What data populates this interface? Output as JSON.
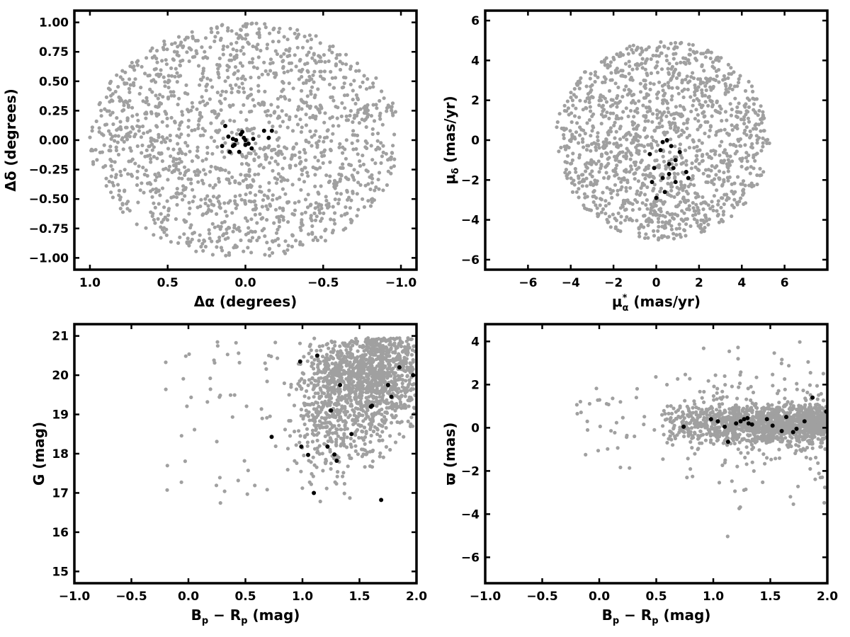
{
  "colors": {
    "field": "#a0a0a0",
    "members": "#000000",
    "frame": "#000000",
    "background": "#ffffff"
  },
  "chart_data": [
    {
      "type": "scatter",
      "xlabel": "Δα (degrees)",
      "ylabel": "Δδ (degrees)",
      "xlim": [
        1.1,
        -1.1
      ],
      "ylim": [
        -1.1,
        1.1
      ],
      "x_inverted": true,
      "xticks": [
        1.0,
        0.5,
        0.0,
        -0.5,
        -1.0
      ],
      "xtick_labels": [
        "1.0",
        "0.5",
        "0.0",
        "−0.5",
        "−1.0"
      ],
      "yticks": [
        -1.0,
        -0.75,
        -0.5,
        -0.25,
        0.0,
        0.25,
        0.5,
        0.75,
        1.0
      ],
      "ytick_labels": [
        "−1.00",
        "−0.75",
        "−0.50",
        "−0.25",
        "0.00",
        "0.25",
        "0.50",
        "0.75",
        "1.00"
      ],
      "grid": false,
      "field_distribution": {
        "shape": "disk",
        "center": [
          0.0,
          0.0
        ],
        "radius": 1.0,
        "count": 1600
      },
      "members": {
        "x": [
          0.15,
          0.07,
          0.0,
          -0.05,
          -0.12,
          -0.17,
          0.08,
          0.03,
          0.02,
          -0.02,
          0.06,
          0.04,
          0.1,
          -0.04,
          0.08,
          0.13,
          0.0,
          -0.15,
          0.11,
          0.01
        ],
        "y": [
          -0.05,
          -0.04,
          0.0,
          0.01,
          0.08,
          0.08,
          0.01,
          0.05,
          0.07,
          -0.03,
          0.0,
          -0.1,
          -0.1,
          -0.07,
          -0.05,
          0.12,
          -0.04,
          0.02,
          0.03,
          0.02
        ]
      }
    },
    {
      "type": "scatter",
      "xlabel": "μ*α  (mas/yr)",
      "ylabel": "μδ (mas/yr)",
      "xlim": [
        -8,
        8
      ],
      "ylim": [
        -6.5,
        6.5
      ],
      "xticks": [
        -6,
        -4,
        -2,
        0,
        2,
        4,
        6
      ],
      "xtick_labels": [
        "−6",
        "−4",
        "−2",
        "0",
        "2",
        "4",
        "6"
      ],
      "yticks": [
        -6,
        -4,
        -2,
        0,
        2,
        4,
        6
      ],
      "ytick_labels": [
        "−6",
        "−4",
        "−2",
        "0",
        "2",
        "4",
        "6"
      ],
      "grid": false,
      "field_distribution": {
        "shape": "disk",
        "center": [
          0.3,
          0.0
        ],
        "radius": 5.0,
        "ylimit": [
          -5.0,
          5.0
        ],
        "count": 1400
      },
      "members": {
        "x": [
          -0.3,
          0.5,
          0.2,
          1.1,
          0.6,
          0.9,
          0.3,
          -0.2,
          1.4,
          0.7,
          0.0,
          0.8,
          0.4,
          1.5,
          0.6,
          -0.1,
          0.3,
          0.9
        ],
        "y": [
          -0.7,
          0.0,
          -0.5,
          -0.6,
          -1.2,
          -1.0,
          -1.9,
          -2.1,
          -1.6,
          -0.3,
          -2.9,
          -1.4,
          -2.6,
          -1.9,
          -1.7,
          -1.4,
          -0.1,
          -2.1
        ]
      }
    },
    {
      "type": "scatter",
      "xlabel": "Bp − Rp (mag)",
      "ylabel": "G (mag)",
      "xlim": [
        -1.0,
        2.0
      ],
      "ylim": [
        14.7,
        21.3
      ],
      "xticks": [
        -1.0,
        -0.5,
        0.0,
        0.5,
        1.0,
        1.5,
        2.0
      ],
      "xtick_labels": [
        "−1.0",
        "−0.5",
        "0.0",
        "0.5",
        "1.0",
        "1.5",
        "2.0"
      ],
      "yticks": [
        15,
        16,
        17,
        18,
        19,
        20,
        21
      ],
      "ytick_labels": [
        "15",
        "16",
        "17",
        "18",
        "19",
        "20",
        "21"
      ],
      "grid": false,
      "field_distribution": {
        "shape": "cmd-band",
        "count": 1500
      },
      "members": {
        "x": [
          0.98,
          1.13,
          1.25,
          1.33,
          1.6,
          1.75,
          1.85,
          1.97,
          0.73,
          0.99,
          1.05,
          1.22,
          1.28,
          1.3,
          1.1,
          1.69,
          1.43,
          1.61,
          1.78
        ],
        "y": [
          20.35,
          20.5,
          19.1,
          19.75,
          19.2,
          19.75,
          20.2,
          20.0,
          18.43,
          18.18,
          17.97,
          18.18,
          17.98,
          17.82,
          17.0,
          16.82,
          18.5,
          19.22,
          19.45
        ]
      }
    },
    {
      "type": "scatter",
      "xlabel": "Bp − Rp (mag)",
      "ylabel": "ϖ (mas)",
      "xlim": [
        -1.0,
        2.0
      ],
      "ylim": [
        -7.2,
        4.8
      ],
      "xticks": [
        -1.0,
        -0.5,
        0.0,
        0.5,
        1.0,
        1.5,
        2.0
      ],
      "xtick_labels": [
        "−1.0",
        "−0.5",
        "0.0",
        "0.5",
        "1.0",
        "1.5",
        "2.0"
      ],
      "yticks": [
        -6,
        -4,
        -2,
        0,
        2,
        4
      ],
      "ytick_labels": [
        "−6",
        "−4",
        "−2",
        "0",
        "2",
        "4"
      ],
      "grid": false,
      "field_distribution": {
        "shape": "parallax-band",
        "count": 1500
      },
      "members": {
        "x": [
          0.74,
          0.98,
          1.04,
          1.1,
          1.13,
          1.2,
          1.24,
          1.27,
          1.3,
          1.34,
          1.47,
          1.6,
          1.64,
          1.7,
          1.73,
          1.8,
          1.87,
          1.99,
          1.52,
          1.31
        ],
        "y": [
          0.05,
          0.4,
          0.3,
          0.05,
          -0.65,
          0.2,
          0.3,
          0.4,
          0.45,
          0.15,
          0.4,
          -0.15,
          0.5,
          -0.2,
          -0.05,
          0.3,
          1.4,
          0.75,
          0.1,
          0.2
        ]
      }
    }
  ]
}
